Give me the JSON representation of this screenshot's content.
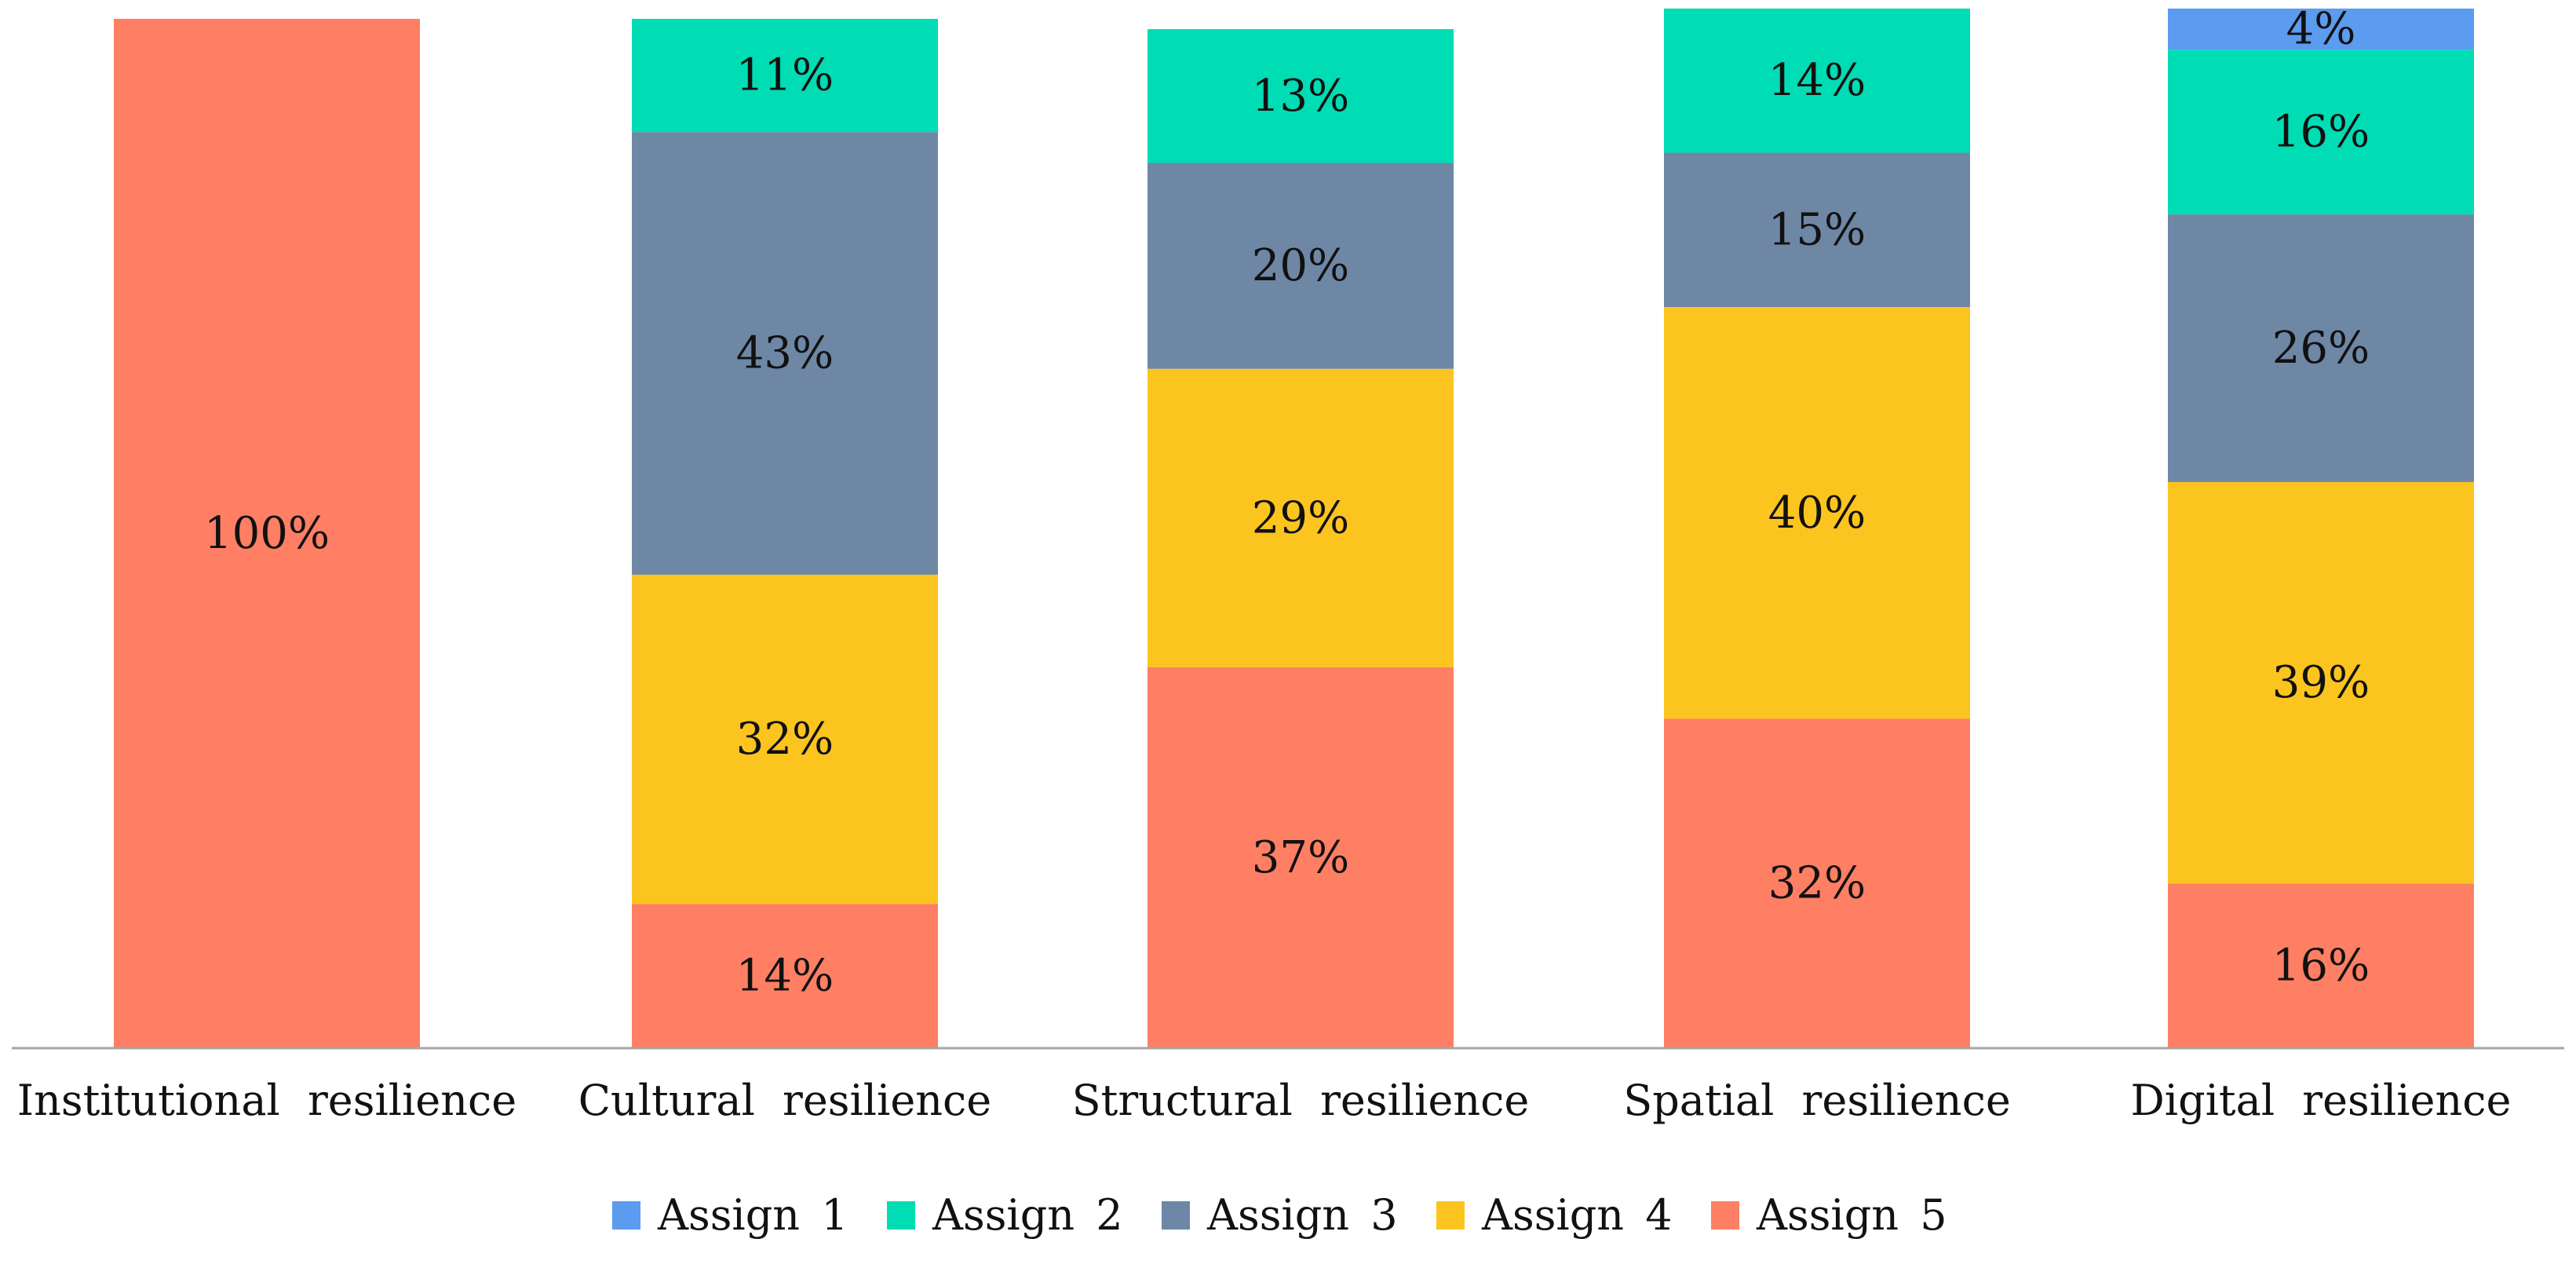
{
  "chart_data": {
    "type": "bar",
    "stacked": true,
    "normalized": true,
    "title": "",
    "xlabel": "",
    "ylabel": "",
    "ylim": [
      0,
      100
    ],
    "grid": false,
    "legend_position": "bottom",
    "categories": [
      "Institutional resilience",
      "Cultural resilience",
      "Structural resilience",
      "Spatial resilience",
      "Digital resilience"
    ],
    "series": [
      {
        "name": "Assign 1",
        "color": "#5b9bf0",
        "values": [
          0,
          0,
          0,
          0,
          4
        ],
        "labels": [
          "",
          "",
          "",
          "",
          "4%"
        ]
      },
      {
        "name": "Assign 2",
        "color": "#00dcb4",
        "values": [
          0,
          11,
          13,
          14,
          16
        ],
        "labels": [
          "",
          "11%",
          "13%",
          "14%",
          "16%"
        ]
      },
      {
        "name": "Assign 3",
        "color": "#6e87a5",
        "values": [
          0,
          43,
          20,
          15,
          26
        ],
        "labels": [
          "",
          "43%",
          "20%",
          "15%",
          "26%"
        ]
      },
      {
        "name": "Assign 4",
        "color": "#fcc41f",
        "values": [
          0,
          32,
          29,
          40,
          39
        ],
        "labels": [
          "",
          "32%",
          "29%",
          "40%",
          "39%"
        ]
      },
      {
        "name": "Assign 5",
        "color": "#fe7f63",
        "values": [
          100,
          14,
          37,
          32,
          16
        ],
        "labels": [
          "100%",
          "14%",
          "37%",
          "32%",
          "16%"
        ]
      }
    ]
  }
}
